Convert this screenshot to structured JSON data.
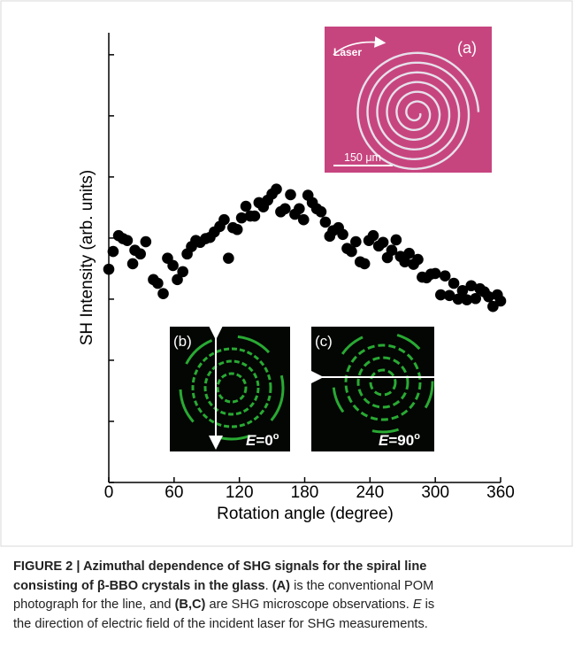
{
  "chart_data": {
    "type": "scatter",
    "x_label": "Rotation angle (degree)",
    "y_label": "SH Intensity (arb. units)",
    "xlim": [
      0,
      360
    ],
    "xticks": [
      0,
      60,
      120,
      180,
      240,
      300,
      360
    ],
    "ylim": [
      0,
      7.36
    ],
    "yticks": [
      0,
      1,
      2,
      3,
      4,
      5,
      6,
      7
    ],
    "show_ytick_labels": false,
    "color": "#000000",
    "x": [
      0,
      4,
      9,
      13,
      17,
      22,
      24,
      29,
      34,
      41,
      45,
      50,
      54,
      59,
      63,
      68,
      72,
      76,
      80,
      84,
      89,
      93,
      97,
      102,
      106,
      110,
      114,
      118,
      122,
      126,
      130,
      134,
      138,
      142,
      146,
      150,
      154,
      158,
      162,
      167,
      171,
      175,
      179,
      183,
      187,
      191,
      195,
      199,
      203,
      206,
      211,
      215,
      219,
      223,
      227,
      231,
      235,
      239,
      243,
      248,
      252,
      256,
      260,
      264,
      268,
      272,
      276,
      280,
      284,
      288,
      292,
      296,
      300,
      305,
      309,
      313,
      317,
      321,
      325,
      329,
      333,
      337,
      341,
      345,
      349,
      353,
      357,
      360
    ],
    "y": [
      3.49,
      3.78,
      4.04,
      3.99,
      3.96,
      3.58,
      3.8,
      3.74,
      3.94,
      3.32,
      3.26,
      3.09,
      3.67,
      3.55,
      3.32,
      3.45,
      3.74,
      3.86,
      3.96,
      3.93,
      3.99,
      4.01,
      4.1,
      4.19,
      4.3,
      3.67,
      4.17,
      4.14,
      4.33,
      4.52,
      4.36,
      4.36,
      4.58,
      4.51,
      4.62,
      4.72,
      4.8,
      4.43,
      4.48,
      4.71,
      4.39,
      4.48,
      4.3,
      4.7,
      4.58,
      4.48,
      4.43,
      4.26,
      4.03,
      4.12,
      4.17,
      4.06,
      3.83,
      3.78,
      3.94,
      3.61,
      3.58,
      3.96,
      4.04,
      3.87,
      3.93,
      3.68,
      3.8,
      3.97,
      3.7,
      3.61,
      3.75,
      3.57,
      3.65,
      3.36,
      3.35,
      3.41,
      3.42,
      3.07,
      3.38,
      3.06,
      3.26,
      3.0,
      3.14,
      2.99,
      3.22,
      3.01,
      3.17,
      3.12,
      3.04,
      2.88,
      3.07,
      2.97
    ]
  },
  "insets": {
    "a": {
      "label": "(a)",
      "laser": "Laser",
      "scale": "150 μm"
    },
    "b": {
      "label": "(b)",
      "var": "E",
      "text": "=0",
      "sup": "o"
    },
    "c": {
      "label": "(c)",
      "var": "E",
      "text": "=90",
      "sup": "o"
    }
  },
  "caption": {
    "lines": [
      [
        {
          "text": "FIGURE 2 | Azimuthal dependence of SHG signals for the spiral line",
          "style": "bold"
        }
      ],
      [
        {
          "text": "consisting of β-BBO crystals in the glass",
          "style": "bold"
        },
        {
          "text": ".",
          "style": "normal"
        },
        {
          "text": " (A)",
          "style": "bold"
        },
        {
          "text": " is the conventional POM",
          "style": "normal"
        }
      ],
      [
        {
          "text": "photograph for the line, and ",
          "style": "normal"
        },
        {
          "text": "(B,C)",
          "style": "bold"
        },
        {
          "text": " are SHG microscope observations. ",
          "style": "normal"
        },
        {
          "text": "E",
          "style": "italic"
        },
        {
          "text": " is",
          "style": "normal"
        }
      ],
      [
        {
          "text": "the direction of electric field of the incident laser for SHG measurements.",
          "style": "normal"
        }
      ]
    ]
  }
}
